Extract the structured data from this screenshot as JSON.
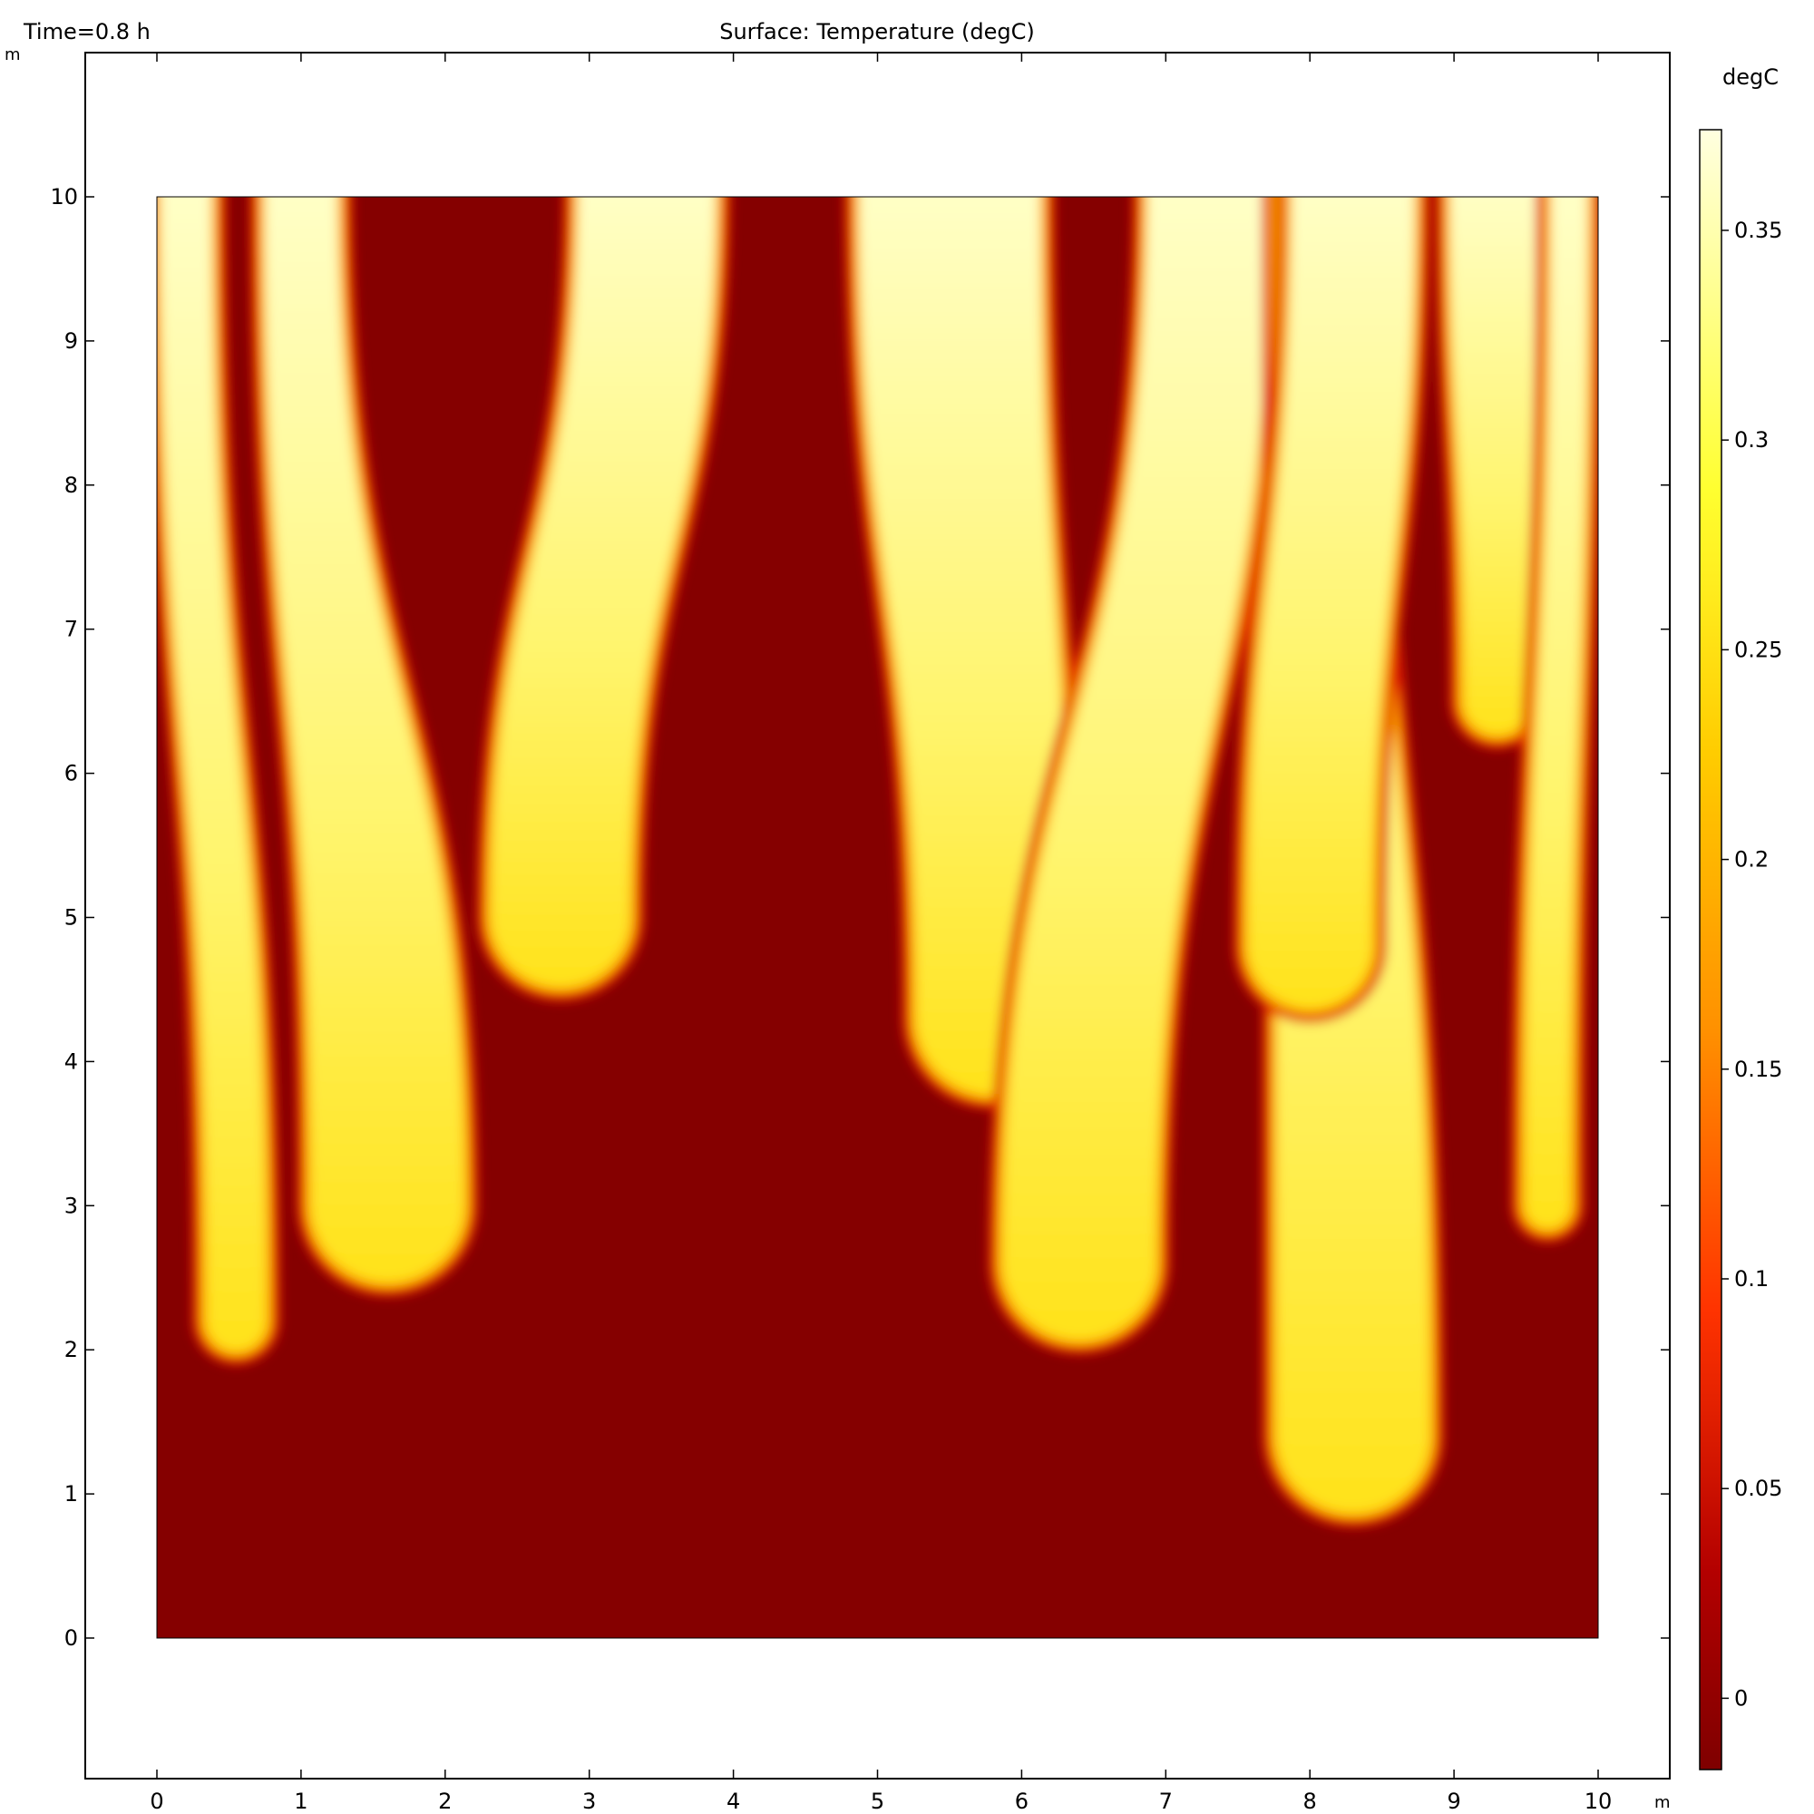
{
  "header": {
    "time_label": "Time=0.8 h",
    "title": "Surface: Temperature (degC)"
  },
  "axes": {
    "x_unit": "m",
    "y_unit": "m",
    "x_ticks": [
      "0",
      "1",
      "2",
      "3",
      "4",
      "5",
      "6",
      "7",
      "8",
      "9",
      "10"
    ],
    "y_ticks": [
      "0",
      "1",
      "2",
      "3",
      "4",
      "5",
      "6",
      "7",
      "8",
      "9",
      "10"
    ]
  },
  "colorbar": {
    "unit": "degC",
    "ticks": [
      "0",
      "0.05",
      "0.1",
      "0.15",
      "0.2",
      "0.25",
      "0.3",
      "0.35"
    ],
    "tick_values": [
      0,
      0.05,
      0.1,
      0.15,
      0.2,
      0.25,
      0.3,
      0.35
    ],
    "range": [
      -0.017,
      0.374
    ],
    "colormap": [
      "#7f0000",
      "#cc0000",
      "#ff5500",
      "#ff9900",
      "#ffd500",
      "#ffff33",
      "#ffffdd"
    ]
  },
  "chart_data": {
    "type": "heatmap",
    "title": "Surface: Temperature (degC)",
    "subtitle": "Time=0.8 h",
    "xlabel": "m",
    "ylabel": "m",
    "xlim": [
      -0.5,
      10.5
    ],
    "ylim": [
      -1,
      11
    ],
    "domain": {
      "x": [
        0,
        10
      ],
      "y": [
        0,
        10
      ]
    },
    "value_range": [
      -0.017,
      0.374
    ],
    "background_value": -0.017,
    "warm_value": 0.36,
    "plumes": [
      {
        "x_top": 0.2,
        "x_tip": 0.55,
        "y_tip": 2.2,
        "width_top": 0.4,
        "width_tip": 0.45
      },
      {
        "x_top": 1.0,
        "x_tip": 1.6,
        "y_tip": 3.0,
        "width_top": 0.55,
        "width_tip": 1.1
      },
      {
        "x_top": 3.4,
        "x_tip": 2.8,
        "y_tip": 5.0,
        "width_top": 1.0,
        "width_tip": 1.0
      },
      {
        "x_top": 5.5,
        "x_tip": 5.8,
        "y_tip": 4.3,
        "width_top": 1.3,
        "width_tip": 1.1
      },
      {
        "x_top": 7.3,
        "x_tip": 6.4,
        "y_tip": 2.6,
        "width_top": 0.9,
        "width_tip": 1.1
      },
      {
        "x_top": 8.1,
        "x_tip": 8.3,
        "y_tip": 1.4,
        "width_top": 0.7,
        "width_tip": 1.1
      },
      {
        "x_top": 8.3,
        "x_tip": 8.0,
        "y_tip": 4.8,
        "width_top": 0.9,
        "width_tip": 0.9
      },
      {
        "x_top": 9.3,
        "x_tip": 9.3,
        "y_tip": 6.5,
        "width_top": 0.7,
        "width_tip": 0.5
      },
      {
        "x_top": 9.8,
        "x_tip": 9.65,
        "y_tip": 3.0,
        "width_top": 0.3,
        "width_tip": 0.35
      }
    ]
  }
}
